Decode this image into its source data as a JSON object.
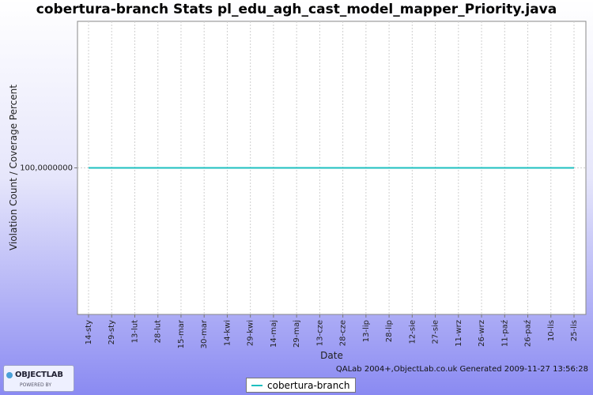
{
  "chart_data": {
    "type": "line",
    "title": "cobertura-branch  Stats pl_edu_agh_cast_model_mapper_Priority.java",
    "xlabel": "Date",
    "ylabel": "Violation Count / Coverage Percent",
    "x_tick_labels": [
      "14-sty",
      "29-sty",
      "13-lut",
      "28-lut",
      "15-mar",
      "30-mar",
      "14-kwi",
      "29-kwi",
      "14-maj",
      "29-maj",
      "13-cze",
      "28-cze",
      "13-lip",
      "28-lip",
      "12-sie",
      "27-sie",
      "11-wrz",
      "26-wrz",
      "11-paź",
      "26-paź",
      "10-lis",
      "25-lis"
    ],
    "y_tick_labels": [
      "100,0000000"
    ],
    "y_tick_values": [
      100
    ],
    "ylim": [
      99.99999985,
      100.00000015
    ],
    "grid": true,
    "legend_position": "bottom",
    "series": [
      {
        "name": "cobertura-branch",
        "color": "#1ec0c0",
        "x": [
          "14-sty",
          "25-lis"
        ],
        "values": [
          100,
          100
        ]
      }
    ]
  },
  "footer": {
    "generated": "QALab 2004+,ObjectLab.co.uk Generated 2009-11-27 13:56:28"
  },
  "logo": {
    "name": "OBJECTLAB",
    "tagline": "POWERED BY"
  }
}
